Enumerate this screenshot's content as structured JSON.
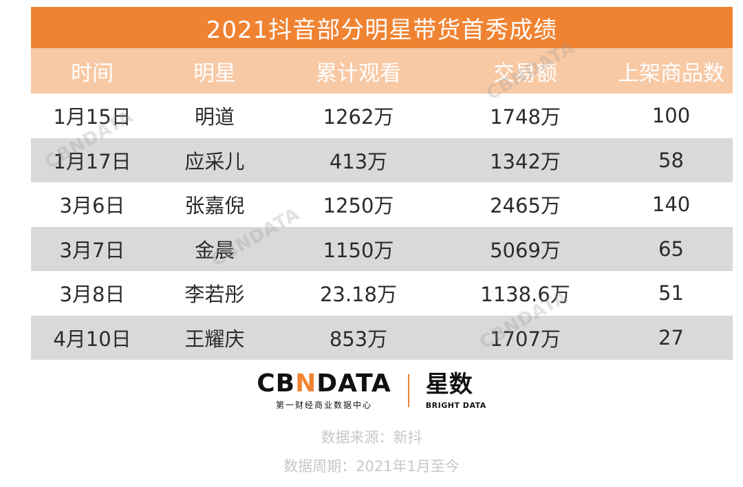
{
  "title": "2021抖音部分明星带货首秀成绩",
  "headers": [
    "时间",
    "明星",
    "累计观看",
    "交易额",
    "上架商品数"
  ],
  "rows": [
    [
      "1月15日",
      "明道",
      "1262万",
      "1748万",
      "100"
    ],
    [
      "1月17日",
      "应采儿",
      "413万",
      "1342万",
      "58"
    ],
    [
      "3月6日",
      "张嘉倪",
      "1250万",
      "2465万",
      "140"
    ],
    [
      "3月7日",
      "金晨",
      "1150万",
      "5069万",
      "65"
    ],
    [
      "3月8日",
      "李若彤",
      "23.18万",
      "1138.6万",
      "51"
    ],
    [
      "4月10日",
      "王耀庆",
      "853万",
      "1707万",
      "27"
    ]
  ],
  "watermark": "CBNDATA",
  "logo": {
    "main_prefix": "CB",
    "main_slash": "N",
    "main_suffix": "DATA",
    "sub": "第一财经商业数据中心",
    "cn": "星数",
    "en": "BRIGHT DATA"
  },
  "footnotes": {
    "source": "数据来源：新抖",
    "period": "数据周期：2021年1月至今"
  },
  "colors": {
    "title_bg": "#f08332",
    "header_bg": "#f8c9a5",
    "shaded_row": "#d9d9d9",
    "footnote_text": "#c7c7c7"
  }
}
